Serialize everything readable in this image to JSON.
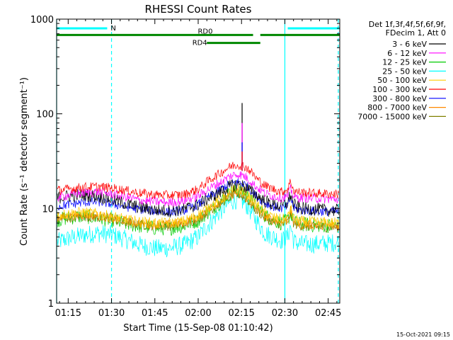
{
  "chart_data": {
    "type": "line",
    "title": "RHESSI Count Rates",
    "xlabel": "Start Time (15-Sep-08 01:10:42)",
    "ylabel": "Count Rate (s⁻¹ detector segment⁻¹)",
    "yscale": "log",
    "ylim": [
      1,
      1000
    ],
    "xlim_minutes": [
      71,
      169
    ],
    "x_ticks": [
      {
        "label": "01:15",
        "minute": 75
      },
      {
        "label": "01:30",
        "minute": 90
      },
      {
        "label": "01:45",
        "minute": 105
      },
      {
        "label": "02:00",
        "minute": 120
      },
      {
        "label": "02:15",
        "minute": 135
      },
      {
        "label": "02:30",
        "minute": 150
      },
      {
        "label": "02:45",
        "minute": 165
      }
    ],
    "y_ticks": [
      {
        "label": "1",
        "value": 1
      },
      {
        "label": "10",
        "value": 10
      },
      {
        "label": "100",
        "value": 100
      },
      {
        "label": "1000",
        "value": 1000
      }
    ],
    "legend": {
      "position": "right",
      "header_line1": "Det 1f,3f,4f,5f,6f,9f,",
      "header_line2": "FDecim 1, Att 0"
    },
    "x_minutes": [
      71,
      75,
      80,
      85,
      90,
      95,
      100,
      105,
      110,
      115,
      120,
      125,
      128,
      130,
      132,
      134,
      136,
      138,
      140,
      143,
      146,
      149,
      151,
      152,
      153,
      154,
      156,
      160,
      165,
      169
    ],
    "series": [
      {
        "name": "3 - 6 keV",
        "color": "#000000",
        "noise": 0.07,
        "values": [
          13.0,
          13.5,
          14.0,
          13.5,
          12.5,
          11.2,
          10.2,
          9.6,
          9.4,
          9.8,
          11.0,
          13.5,
          15.0,
          16.5,
          17.5,
          18.0,
          17.0,
          15.5,
          14.0,
          12.0,
          11.0,
          10.5,
          11.5,
          14.0,
          11.0,
          10.5,
          10.0,
          9.8,
          9.6,
          9.5
        ]
      },
      {
        "name": "6 - 12 keV",
        "color": "#ff00ff",
        "noise": 0.05,
        "values": [
          13.0,
          13.8,
          14.6,
          15.0,
          14.2,
          13.2,
          12.2,
          11.8,
          11.6,
          12.0,
          13.5,
          17.0,
          19.0,
          21.0,
          22.5,
          23.0,
          22.0,
          19.5,
          17.0,
          14.5,
          13.5,
          13.0,
          13.5,
          16.0,
          13.5,
          13.0,
          13.0,
          12.8,
          12.6,
          12.5
        ]
      },
      {
        "name": "12 - 25 keV",
        "color": "#00cc00",
        "noise": 0.08,
        "values": [
          7.5,
          8.0,
          8.3,
          8.0,
          7.5,
          6.9,
          6.5,
          6.2,
          6.2,
          6.6,
          7.5,
          10.0,
          12.0,
          13.8,
          15.0,
          15.5,
          14.5,
          12.5,
          10.5,
          8.5,
          7.5,
          7.0,
          7.5,
          9.0,
          7.2,
          7.0,
          6.8,
          6.7,
          6.6,
          6.5
        ]
      },
      {
        "name": "25 - 50 keV",
        "color": "#00ffff",
        "noise": 0.1,
        "values": [
          4.4,
          4.8,
          5.2,
          5.5,
          5.3,
          4.7,
          4.1,
          3.8,
          3.8,
          4.1,
          5.0,
          7.5,
          9.5,
          11.0,
          12.0,
          12.5,
          11.5,
          9.5,
          7.5,
          5.5,
          5.0,
          4.6,
          5.0,
          6.5,
          4.6,
          4.3,
          4.2,
          4.2,
          4.3,
          4.4
        ]
      },
      {
        "name": "50 - 100 keV",
        "color": "#ffcc00",
        "noise": 0.06,
        "values": [
          8.5,
          8.8,
          9.1,
          8.8,
          8.2,
          7.6,
          7.2,
          7.0,
          7.0,
          7.3,
          8.5,
          11.0,
          12.5,
          14.0,
          15.5,
          16.0,
          15.0,
          13.0,
          11.0,
          9.0,
          8.0,
          7.6,
          8.0,
          10.0,
          7.8,
          7.5,
          7.3,
          7.2,
          7.1,
          7.0
        ]
      },
      {
        "name": "100 - 300 keV",
        "color": "#ff0000",
        "noise": 0.05,
        "values": [
          15.5,
          16.0,
          16.8,
          17.0,
          16.5,
          15.5,
          14.5,
          14.0,
          13.8,
          14.0,
          16.0,
          21.0,
          24.0,
          26.5,
          28.5,
          29.0,
          28.0,
          25.0,
          21.0,
          17.5,
          16.0,
          15.0,
          16.0,
          19.5,
          15.5,
          15.0,
          14.8,
          14.5,
          14.3,
          14.2
        ]
      },
      {
        "name": "300 - 800 keV",
        "color": "#0000ff",
        "noise": 0.05,
        "values": [
          10.5,
          11.0,
          11.6,
          11.8,
          11.2,
          10.4,
          9.8,
          9.4,
          9.2,
          9.5,
          11.0,
          14.0,
          16.0,
          17.5,
          18.5,
          19.0,
          18.0,
          16.0,
          13.5,
          11.5,
          10.5,
          10.0,
          10.5,
          13.0,
          10.2,
          9.8,
          9.6,
          9.4,
          9.3,
          9.2
        ]
      },
      {
        "name": "800 - 7000 keV",
        "color": "#ff8800",
        "noise": 0.05,
        "values": [
          8.0,
          8.3,
          8.6,
          8.4,
          7.9,
          7.4,
          7.0,
          6.8,
          6.8,
          7.1,
          8.0,
          10.5,
          12.0,
          13.2,
          14.2,
          14.5,
          13.5,
          11.8,
          10.0,
          8.3,
          7.5,
          7.1,
          7.5,
          9.5,
          7.3,
          7.0,
          6.8,
          6.7,
          6.6,
          6.5
        ]
      },
      {
        "name": "7000 - 15000 keV",
        "color": "#808000",
        "noise": 0.05,
        "values": [
          7.6,
          7.9,
          8.2,
          8.0,
          7.6,
          7.1,
          6.7,
          6.5,
          6.5,
          6.8,
          7.7,
          10.0,
          11.5,
          12.6,
          13.6,
          14.0,
          13.0,
          11.3,
          9.6,
          8.0,
          7.2,
          6.8,
          7.2,
          9.0,
          7.0,
          6.7,
          6.5,
          6.4,
          6.3,
          6.3
        ]
      }
    ],
    "spike": {
      "minute": 135.2,
      "values": [
        130,
        80,
        50,
        40
      ]
    },
    "annotations": {
      "night_bar": {
        "label": "N",
        "color": "#00ffff",
        "segments": [
          [
            71,
            88.5
          ],
          [
            151,
            169
          ]
        ],
        "y_value": 800
      },
      "rd0_bar": {
        "label": "RD0",
        "color": "#008800",
        "segments": [
          [
            71,
            139
          ],
          [
            141.5,
            169
          ]
        ],
        "y_value": 680
      },
      "rd4_bar": {
        "label": "RD4",
        "color": "#008800",
        "segments": [
          [
            123,
            141.5
          ]
        ],
        "y_value": 560
      },
      "saa_lines": {
        "color": "#00ffff",
        "solid_minutes": [
          71,
          150
        ],
        "dashed_minutes": [
          90,
          168.5
        ]
      }
    }
  },
  "footer": {
    "timestamp": "15-Oct-2021 09:15"
  }
}
